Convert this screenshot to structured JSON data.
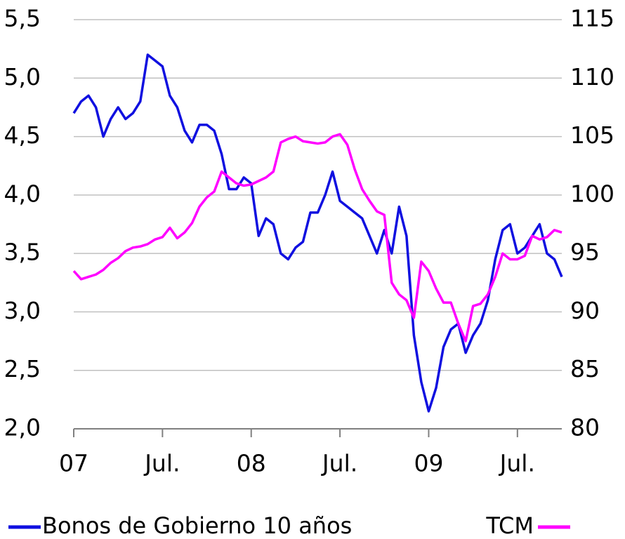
{
  "chart_data": {
    "type": "line",
    "x": [
      0,
      0.5,
      1,
      1.5,
      2,
      2.5,
      3,
      3.5,
      4,
      4.5,
      5,
      5.5,
      6,
      6.5,
      7,
      7.5,
      8,
      8.5,
      9,
      9.5,
      10,
      10.5,
      11,
      11.5,
      12,
      12.5,
      13,
      13.5,
      14,
      14.5,
      15,
      15.5,
      16,
      16.5,
      17,
      17.5,
      18,
      18.5,
      19,
      19.5,
      20,
      20.5,
      21,
      21.5,
      22,
      22.5,
      23,
      23.5,
      24,
      24.5,
      25,
      25.5,
      26,
      26.5,
      27,
      27.5,
      28,
      28.5,
      29,
      29.5,
      30,
      30.5,
      31,
      31.5,
      32,
      32.5,
      33
    ],
    "xlim": [
      0,
      33
    ],
    "xticks": [
      {
        "value": 0,
        "label": "07"
      },
      {
        "value": 6,
        "label": "Jul."
      },
      {
        "value": 12,
        "label": "08"
      },
      {
        "value": 18,
        "label": "Jul."
      },
      {
        "value": 24,
        "label": "09"
      },
      {
        "value": 30,
        "label": "Jul."
      }
    ],
    "ylim": [
      2.0,
      5.5
    ],
    "yticks": [
      {
        "value": 2.0,
        "label": "2,0"
      },
      {
        "value": 2.5,
        "label": "2,5"
      },
      {
        "value": 3.0,
        "label": "3,0"
      },
      {
        "value": 3.5,
        "label": "3,5"
      },
      {
        "value": 4.0,
        "label": "4,0"
      },
      {
        "value": 4.5,
        "label": "4,5"
      },
      {
        "value": 5.0,
        "label": "5,0"
      },
      {
        "value": 5.5,
        "label": "5,5"
      }
    ],
    "y2lim": [
      80,
      115
    ],
    "y2ticks": [
      80,
      85,
      90,
      95,
      100,
      105,
      110,
      115
    ],
    "grid": true,
    "series": [
      {
        "name": "Bonos de Gobierno 10 años",
        "color": "#1010e0",
        "values": [
          4.7,
          4.8,
          4.85,
          4.75,
          4.5,
          4.65,
          4.75,
          4.65,
          4.7,
          4.8,
          5.2,
          5.15,
          5.1,
          4.85,
          4.75,
          4.55,
          4.45,
          4.6,
          4.6,
          4.55,
          4.35,
          4.05,
          4.05,
          4.15,
          4.1,
          3.65,
          3.8,
          3.75,
          3.5,
          3.45,
          3.55,
          3.6,
          3.85,
          3.85,
          4.0,
          4.2,
          3.95,
          3.9,
          3.85,
          3.8,
          3.65,
          3.5,
          3.7,
          3.5,
          3.9,
          3.65,
          2.8,
          2.4,
          2.15,
          2.35,
          2.7,
          2.85,
          2.9,
          2.65,
          2.8,
          2.9,
          3.1,
          3.45,
          3.7,
          3.75,
          3.5,
          3.55,
          3.65,
          3.75,
          3.5,
          3.45,
          3.3
        ]
      },
      {
        "name": "TCM",
        "color": "#ff00ff",
        "axis": "y2",
        "values": [
          93.5,
          92.8,
          93,
          93.2,
          93.6,
          94.2,
          94.6,
          95.2,
          95.5,
          95.6,
          95.8,
          96.2,
          96.4,
          97.2,
          96.3,
          96.8,
          97.6,
          99,
          99.8,
          100.3,
          102,
          101.5,
          101,
          100.8,
          100.9,
          101.2,
          101.5,
          102,
          104.5,
          104.8,
          105,
          104.6,
          104.5,
          104.4,
          104.5,
          105,
          105.2,
          104.3,
          102.2,
          100.5,
          99.5,
          98.6,
          98.3,
          92.5,
          91.5,
          91,
          89.5,
          94.3,
          93.5,
          92,
          90.8,
          90.8,
          89,
          87.5,
          90.5,
          90.7,
          91.5,
          93,
          95,
          94.5,
          94.5,
          94.8,
          96.5,
          96.2,
          96.4,
          97,
          96.8
        ]
      }
    ]
  }
}
